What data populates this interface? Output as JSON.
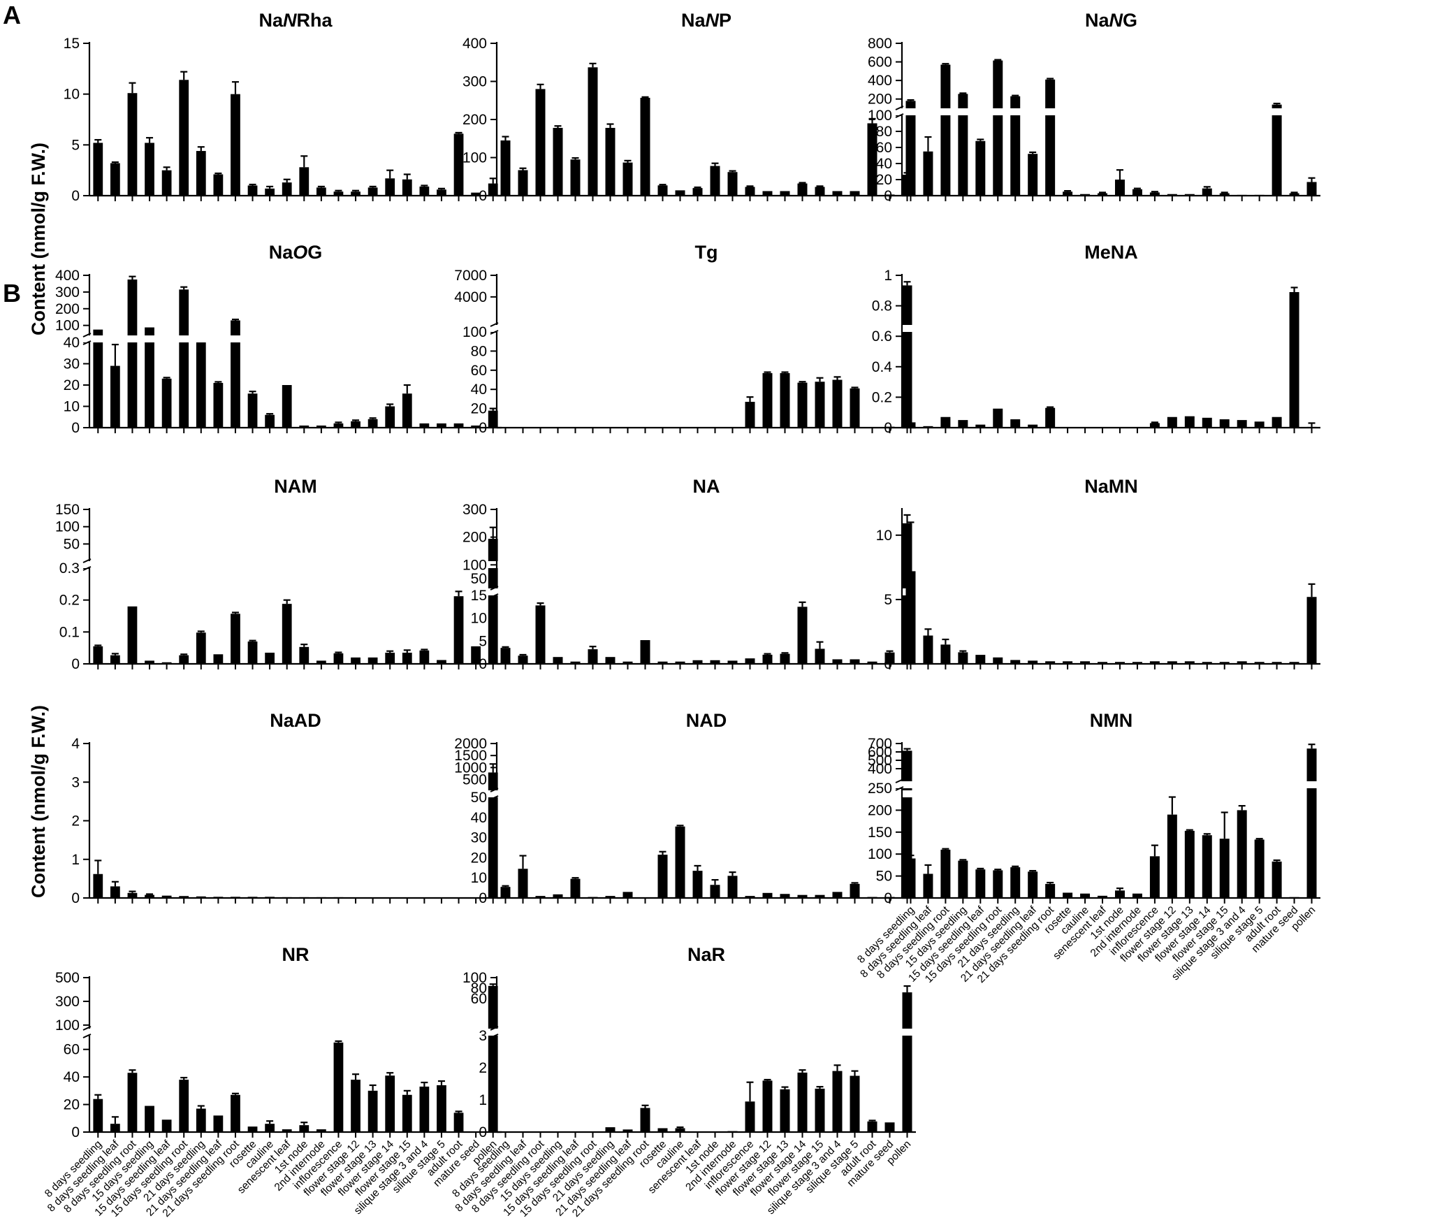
{
  "figure": {
    "section_labels": [
      "A",
      "B"
    ],
    "ylabel_A": "Content (nmol/g F.W.)",
    "ylabel_B": "Content (nmol/g F.W.)"
  },
  "categories": [
    "8 days seedling",
    "8 days seedling leaf",
    "8 days seedling root",
    "15 days seedling",
    "15 days seedling leaf",
    "15 days seedling root",
    "21 days seedling",
    "21 days seedling leaf",
    "21 days seedling root",
    "rosette",
    "cauline",
    "senescent leaf",
    "1st node",
    "2nd internode",
    "inflorescence",
    "flower stage 12",
    "flower stage 13",
    "flower stage 14",
    "flower stage 15",
    "silique stage 3 and 4",
    "silique stage 5",
    "adult root",
    "mature seed",
    "pollen"
  ],
  "chart_data": [
    {
      "type": "bar",
      "panel": "A",
      "title": "NaNRha",
      "title_parts": [
        "Na",
        "N",
        "Rha"
      ],
      "ylabel": "Content (nmol/g F.W.)",
      "segments": [
        {
          "lo": 0,
          "hi": 15,
          "ticks": [
            0,
            5,
            10,
            15
          ]
        }
      ],
      "values": [
        5.2,
        3.2,
        10.1,
        5.2,
        2.5,
        11.4,
        4.4,
        2.1,
        10.0,
        1.0,
        0.7,
        1.3,
        2.8,
        0.8,
        0.4,
        0.4,
        0.8,
        1.7,
        1.6,
        0.9,
        0.6,
        6.1,
        0.3,
        1.2
      ],
      "errors": [
        0.3,
        0.1,
        1.0,
        0.5,
        0.3,
        0.8,
        0.4,
        0.1,
        1.2,
        0.1,
        0.2,
        0.3,
        1.1,
        0.1,
        0.1,
        0.1,
        0.1,
        0.8,
        0.5,
        0.1,
        0.1,
        0.1,
        0.05,
        0.5
      ]
    },
    {
      "type": "bar",
      "panel": "A",
      "title": "NaNP",
      "title_parts": [
        "Na",
        "N",
        "P"
      ],
      "ylabel": "Content (nmol/g F.W.)",
      "segments": [
        {
          "lo": 0,
          "hi": 400,
          "ticks": [
            0,
            100,
            200,
            300,
            400
          ]
        }
      ],
      "values": [
        145,
        67,
        280,
        178,
        95,
        337,
        178,
        87,
        257,
        27,
        14,
        20,
        78,
        62,
        23,
        12,
        12,
        32,
        23,
        12,
        12,
        190,
        3,
        55
      ],
      "errors": [
        10,
        5,
        12,
        5,
        4,
        10,
        10,
        5,
        2,
        2,
        1,
        2,
        7,
        3,
        2,
        1,
        1,
        2,
        2,
        1,
        1,
        12,
        1,
        5
      ]
    },
    {
      "type": "bar",
      "panel": "A",
      "title": "NaNG",
      "title_parts": [
        "Na",
        "N",
        "G"
      ],
      "ylabel": "Content (nmol/g F.W.)",
      "segments": [
        {
          "lo": 0,
          "hi": 100,
          "ticks": [
            0,
            20,
            40,
            60,
            80,
            100
          ]
        },
        {
          "lo": 100,
          "hi": 800,
          "ticks": [
            200,
            400,
            600,
            800
          ]
        }
      ],
      "values": [
        180,
        55,
        570,
        255,
        68,
        615,
        230,
        52,
        410,
        5,
        2,
        3,
        20,
        8,
        4,
        2,
        2,
        9,
        3,
        1,
        1,
        140,
        3,
        17
      ],
      "errors": [
        10,
        18,
        10,
        8,
        2,
        8,
        8,
        2,
        10,
        1,
        0.5,
        1,
        12,
        1,
        1,
        0.5,
        0.5,
        2,
        1,
        0.3,
        0.3,
        12,
        1,
        5
      ]
    },
    {
      "type": "bar",
      "panel": "A",
      "title": "NaOG",
      "title_parts": [
        "Na",
        "O",
        "G"
      ],
      "ylabel": "Content (nmol/g F.W.)",
      "segments": [
        {
          "lo": 0,
          "hi": 40,
          "ticks": [
            0,
            10,
            20,
            30,
            40
          ]
        },
        {
          "lo": 40,
          "hi": 400,
          "ticks": [
            100,
            200,
            300,
            400
          ]
        }
      ],
      "values": [
        75,
        29,
        375,
        88,
        23,
        315,
        40,
        21,
        130,
        16,
        6,
        20,
        1,
        1,
        2,
        3,
        4,
        10,
        16,
        2,
        2,
        2,
        1,
        8
      ],
      "errors": [
        4,
        10,
        18,
        4,
        0.5,
        15,
        0,
        0.5,
        6,
        1,
        0.5,
        0,
        0.3,
        0.3,
        0.5,
        0.5,
        0.5,
        1,
        4,
        0.3,
        0.3,
        0.3,
        0.3,
        1
      ]
    },
    {
      "type": "bar",
      "panel": "A",
      "title": "Tg",
      "title_parts": [
        "Tg"
      ],
      "ylabel": "Content (nmol/g F.W.)",
      "segments": [
        {
          "lo": 0,
          "hi": 100,
          "ticks": [
            0,
            20,
            40,
            60,
            80,
            100
          ]
        },
        {
          "lo": 100,
          "hi": 7000,
          "ticks": [
            4000,
            7000
          ]
        }
      ],
      "values": [
        0,
        0,
        0,
        0,
        0,
        0,
        0.5,
        0.5,
        0,
        0.3,
        0.3,
        0.3,
        0,
        0,
        27,
        57,
        57,
        47,
        48,
        50,
        41,
        0,
        1,
        5600
      ],
      "errors": [
        0,
        0,
        0,
        0,
        0,
        0,
        0.3,
        0.3,
        0,
        0.2,
        0.2,
        0.2,
        0,
        0,
        5,
        1,
        1,
        1,
        4,
        3,
        1,
        0,
        0.5,
        500
      ]
    },
    {
      "type": "bar",
      "panel": "A",
      "title": "MeNA",
      "title_parts": [
        "MeNA"
      ],
      "ylabel": "Content (nmol/g F.W.)",
      "segments": [
        {
          "lo": 0,
          "hi": 1.0,
          "ticks": [
            0,
            0.2,
            0.4,
            0.6,
            0.8,
            1.0
          ]
        }
      ],
      "values": [
        0.035,
        0.01,
        0.07,
        0.05,
        0.02,
        0.125,
        0.055,
        0.02,
        0.13,
        0,
        0,
        0,
        0,
        0,
        0.03,
        0.07,
        0.075,
        0.065,
        0.055,
        0.05,
        0.04,
        0.07,
        0.89,
        0.005
      ],
      "errors": [
        0.003,
        0.002,
        0.003,
        0.003,
        0.002,
        0.004,
        0.003,
        0.002,
        0.005,
        0,
        0,
        0,
        0,
        0,
        0.005,
        0.004,
        0.003,
        0.003,
        0.003,
        0.003,
        0.003,
        0.003,
        0.03,
        0.025
      ]
    },
    {
      "type": "bar",
      "panel": "B",
      "title": "NAM",
      "title_parts": [
        "NAM"
      ],
      "ylabel": "Content (nmol/g F.W.)",
      "segments": [
        {
          "lo": 0,
          "hi": 0.3,
          "ticks": [
            0,
            0.1,
            0.2,
            0.3
          ]
        },
        {
          "lo": 0.3,
          "hi": 150,
          "ticks": [
            50,
            100,
            150
          ]
        }
      ],
      "values": [
        0.055,
        0.027,
        0.18,
        0.01,
        0.005,
        0.027,
        0.098,
        0.03,
        0.157,
        0.07,
        0.035,
        0.188,
        0.053,
        0.01,
        0.033,
        0.02,
        0.02,
        0.035,
        0.035,
        0.042,
        0.012,
        0.212,
        0.055,
        65
      ],
      "errors": [
        0.003,
        0.005,
        0,
        0.001,
        0.001,
        0.003,
        0.004,
        0.002,
        0.004,
        0.003,
        0.002,
        0.012,
        0.008,
        0.001,
        0.003,
        0.002,
        0.002,
        0.005,
        0.008,
        0.003,
        0.001,
        0.015,
        0.002,
        33
      ]
    },
    {
      "type": "bar",
      "panel": "B",
      "title": "NA",
      "title_parts": [
        "NA"
      ],
      "ylabel": "Content (nmol/g F.W.)",
      "segments": [
        {
          "lo": 0,
          "hi": 15,
          "ticks": [
            0,
            5,
            10,
            15
          ]
        },
        {
          "lo": 15,
          "hi": 300,
          "ticks": [
            50,
            100,
            200,
            300
          ]
        }
      ],
      "values": [
        3.5,
        1.8,
        12.8,
        1.5,
        0.5,
        3.2,
        1.5,
        0.5,
        5.2,
        0.5,
        0.5,
        0.8,
        0.8,
        0.7,
        1.2,
        2.0,
        2.2,
        12.5,
        3.3,
        1.0,
        1.0,
        0.5,
        2.5,
        250
      ],
      "errors": [
        0.2,
        0.2,
        0.5,
        0.1,
        0.1,
        0.6,
        0.1,
        0.1,
        0.1,
        0.05,
        0.05,
        0.1,
        0.1,
        0.1,
        0.1,
        0.2,
        0.2,
        1.0,
        1.5,
        0.1,
        0.1,
        0.05,
        0.3,
        30
      ]
    },
    {
      "type": "bar",
      "panel": "B",
      "title": "NaMN",
      "title_parts": [
        "NaMN"
      ],
      "ylabel": "Content (nmol/g F.W.)",
      "segments": [
        {
          "lo": 0,
          "hi": 12,
          "ticks": [
            0,
            5.0,
            10
          ]
        }
      ],
      "values": [
        7.2,
        2.2,
        1.5,
        0.9,
        0.7,
        0.5,
        0.3,
        0.25,
        0.2,
        0.2,
        0.2,
        0.15,
        0.15,
        0.15,
        0.2,
        0.2,
        0.2,
        0.15,
        0.15,
        0.2,
        0.15,
        0.15,
        0.15,
        5.2
      ],
      "errors": [
        3.8,
        0.5,
        0.4,
        0.1,
        0.05,
        0.05,
        0.05,
        0.03,
        0.03,
        0.03,
        0.03,
        0.03,
        0.03,
        0.03,
        0.03,
        0.03,
        0.03,
        0.03,
        0.03,
        0.03,
        0.03,
        0.03,
        0.03,
        1.0
      ]
    },
    {
      "type": "bar",
      "panel": "B",
      "title": "NaAD",
      "title_parts": [
        "NaAD"
      ],
      "ylabel": "Content (nmol/g F.W.)",
      "segments": [
        {
          "lo": 0,
          "hi": 4.0,
          "ticks": [
            0,
            1.0,
            2.0,
            3.0,
            4.0
          ]
        }
      ],
      "values": [
        0.62,
        0.3,
        0.13,
        0.08,
        0.06,
        0.05,
        0.04,
        0.03,
        0.03,
        0.03,
        0.03,
        0.02,
        0.02,
        0.02,
        0.02,
        0.01,
        0.01,
        0.01,
        0.01,
        0.01,
        0.01,
        0.01,
        0.01,
        3.25
      ],
      "errors": [
        0.35,
        0.12,
        0.04,
        0.02,
        0.01,
        0.01,
        0.01,
        0.01,
        0.01,
        0.01,
        0.01,
        0.01,
        0.01,
        0.01,
        0.01,
        0,
        0,
        0,
        0,
        0,
        0,
        0,
        0,
        0.22
      ]
    },
    {
      "type": "bar",
      "panel": "B",
      "title": "NAD",
      "title_parts": [
        "NAD"
      ],
      "ylabel": "Content (nmol/g F.W.)",
      "segments": [
        {
          "lo": 0,
          "hi": 50,
          "ticks": [
            0,
            10,
            20,
            30,
            40,
            50
          ]
        },
        {
          "lo": 50,
          "hi": 2000,
          "ticks": [
            500,
            1000,
            1500,
            2000
          ]
        }
      ],
      "values": [
        5.5,
        14.5,
        1.0,
        1.8,
        9.5,
        0.5,
        1.0,
        3.0,
        0.3,
        21.5,
        35.5,
        13.5,
        6.5,
        11.0,
        1.0,
        2.5,
        2.0,
        1.5,
        1.5,
        3.0,
        7.0,
        0.5,
        0.5,
        1700
      ],
      "errors": [
        0.5,
        6.5,
        0.1,
        0.3,
        0.5,
        0.1,
        0.2,
        0.3,
        0.1,
        1.5,
        0.5,
        2.5,
        2.5,
        1.8,
        0.1,
        0.3,
        0.3,
        0.3,
        0.3,
        0.3,
        0.5,
        0.1,
        0.1,
        80
      ]
    },
    {
      "type": "bar",
      "panel": "B",
      "title": "NMN",
      "title_parts": [
        "NMN"
      ],
      "ylabel": "Content (nmol/g F.W.)",
      "segments": [
        {
          "lo": 0,
          "hi": 250,
          "ticks": [
            0,
            50,
            100,
            150,
            200,
            250
          ]
        },
        {
          "lo": 250,
          "hi": 700,
          "ticks": [
            400,
            500,
            600,
            700
          ]
        }
      ],
      "values": [
        90,
        55,
        110,
        85,
        65,
        63,
        70,
        60,
        32,
        12,
        10,
        5,
        17,
        10,
        95,
        190,
        153,
        143,
        135,
        200,
        133,
        83,
        2,
        640
      ],
      "errors": [
        7,
        20,
        2,
        2,
        2,
        2,
        2,
        2,
        3,
        1,
        1,
        1,
        5,
        1,
        25,
        40,
        2,
        3,
        60,
        10,
        2,
        3,
        0.5,
        50
      ]
    },
    {
      "type": "bar",
      "panel": "B",
      "title": "NR",
      "title_parts": [
        "NR"
      ],
      "ylabel": "Content (nmol/g F.W.)",
      "segments": [
        {
          "lo": 0,
          "hi": 70,
          "ticks": [
            0,
            20,
            40,
            60
          ]
        },
        {
          "lo": 70,
          "hi": 500,
          "ticks": [
            100,
            300,
            500
          ]
        }
      ],
      "values": [
        24,
        6,
        43,
        19,
        9,
        38,
        17,
        12,
        27,
        4,
        6,
        2,
        5,
        2,
        65,
        38,
        30,
        41,
        27,
        33,
        34,
        14,
        0.5,
        430
      ],
      "errors": [
        3,
        5,
        2,
        0.5,
        0.5,
        1.5,
        2,
        0.5,
        1,
        0.5,
        2,
        0.3,
        2,
        0.3,
        1,
        4,
        4,
        2,
        3,
        3,
        3,
        1,
        0.2,
        15
      ]
    },
    {
      "type": "bar",
      "panel": "B",
      "title": "NaR",
      "title_parts": [
        "NaR"
      ],
      "ylabel": "Content (nmol/g F.W.)",
      "segments": [
        {
          "lo": 0,
          "hi": 3.0,
          "ticks": [
            0,
            1.0,
            2.0,
            3.0
          ]
        },
        {
          "lo": 3.0,
          "hi": 100,
          "ticks": [
            60,
            80,
            100
          ]
        }
      ],
      "values": [
        0,
        0,
        0,
        0,
        0,
        0,
        0.15,
        0.08,
        0.75,
        0.12,
        0.12,
        0,
        0,
        0.03,
        0.95,
        1.6,
        1.33,
        1.85,
        1.35,
        1.9,
        1.75,
        0.33,
        0.3,
        72
      ],
      "errors": [
        0,
        0,
        0,
        0,
        0,
        0,
        0.02,
        0.02,
        0.08,
        0.02,
        0.03,
        0,
        0,
        0.01,
        0.6,
        0.03,
        0.07,
        0.08,
        0.06,
        0.18,
        0.15,
        0.03,
        0.02,
        12
      ]
    }
  ]
}
